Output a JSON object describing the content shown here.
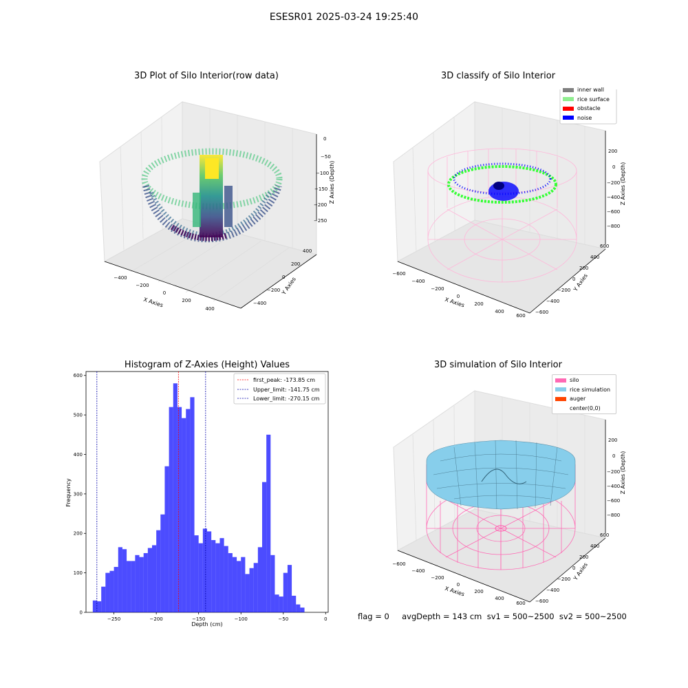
{
  "figure": {
    "title": "ESESR01 2025-03-24 19:25:40"
  },
  "panels": {
    "raw": {
      "title": "3D Plot of Silo Interior(row data)",
      "xlabel": "X Axies",
      "ylabel": "Y Axies",
      "zlabel": "Z Axies (Depth)",
      "x_ticks": [
        "−400",
        "−200",
        "0",
        "200",
        "400"
      ],
      "y_ticks": [
        "−400",
        "−200",
        "0",
        "200",
        "400"
      ],
      "z_ticks": [
        "0",
        "−50",
        "−100",
        "−150",
        "−200",
        "−250"
      ],
      "colormap": "viridis"
    },
    "classify": {
      "title": "3D classify of Silo Interior",
      "xlabel": "X Axies",
      "ylabel": "Y Axies",
      "zlabel": "Z Axies (Depth)",
      "x_ticks": [
        "−600",
        "−400",
        "−200",
        "0",
        "200",
        "400",
        "600"
      ],
      "y_ticks": [
        "−600",
        "−400",
        "−200",
        "0",
        "200",
        "400",
        "600"
      ],
      "z_ticks": [
        "200",
        "0",
        "−200",
        "−400",
        "−600",
        "−800"
      ],
      "legend": [
        {
          "label": "inner wall",
          "color": "#808080"
        },
        {
          "label": "rice surface",
          "color": "#90ee90"
        },
        {
          "label": "obstacle",
          "color": "#ff0000"
        },
        {
          "label": "noise",
          "color": "#0000ff"
        }
      ]
    },
    "simulation": {
      "title": "3D simulation of Silo Interior",
      "xlabel": "X Axies",
      "ylabel": "Y Axies",
      "zlabel": "Z Axies (Depth)",
      "x_ticks": [
        "−600",
        "−400",
        "−200",
        "0",
        "200",
        "400",
        "600"
      ],
      "y_ticks": [
        "−600",
        "−400",
        "−200",
        "0",
        "200",
        "400",
        "600"
      ],
      "z_ticks": [
        "200",
        "0",
        "−200",
        "−400",
        "−600",
        "−800"
      ],
      "legend": [
        {
          "label": "silo",
          "color": "#ff69b4"
        },
        {
          "label": "rice simulation",
          "color": "#87ceeb"
        },
        {
          "label": "auger",
          "color": "#ff4500"
        },
        {
          "label": "center(0,0)",
          "color": "#ffffff"
        }
      ]
    }
  },
  "chart_data": {
    "type": "bar",
    "title": "Histogram of Z-Axies (Height) Values",
    "xlabel": "Depth (cm)",
    "ylabel": "Frequency",
    "xlim": [
      -283,
      3
    ],
    "ylim": [
      0,
      610
    ],
    "x_ticks": [
      -250,
      -200,
      -150,
      -100,
      -50,
      0
    ],
    "x_tick_labels": [
      "−250",
      "−200",
      "−150",
      "−100",
      "−50",
      "0"
    ],
    "y_ticks": [
      0,
      100,
      200,
      300,
      400,
      500,
      600
    ],
    "y_tick_labels": [
      "0",
      "100",
      "200",
      "300",
      "400",
      "500",
      "600"
    ],
    "bar_color": "#0000ff",
    "bin_edges_start": -275,
    "bin_width": 5,
    "values": [
      30,
      28,
      65,
      100,
      105,
      115,
      165,
      160,
      130,
      130,
      145,
      140,
      150,
      163,
      170,
      208,
      248,
      370,
      520,
      580,
      520,
      492,
      515,
      545,
      195,
      175,
      212,
      205,
      183,
      175,
      188,
      168,
      150,
      140,
      130,
      140,
      97,
      112,
      125,
      165,
      330,
      450,
      145,
      45,
      40,
      100,
      120,
      42,
      20,
      12
    ],
    "lines": [
      {
        "label": "first_peak: -173.85 cm",
        "x": -173.85,
        "color": "#ff0000"
      },
      {
        "label": "Upper_limit: -141.75 cm",
        "x": -141.75,
        "color": "#0000aa"
      },
      {
        "label": "Lower_limit: -270.15 cm",
        "x": -270.15,
        "color": "#0000aa"
      }
    ],
    "legend_position": "top-right",
    "grid": false
  },
  "footer": {
    "text": "flag = 0     avgDepth = 143 cm  sv1 = 500~2500  sv2 = 500~2500"
  }
}
